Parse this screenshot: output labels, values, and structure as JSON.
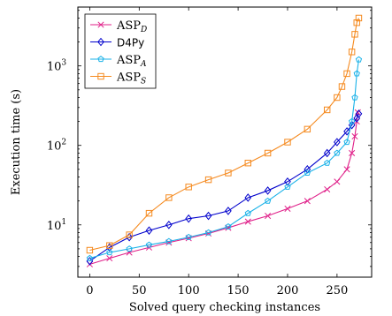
{
  "chart_data": {
    "type": "line",
    "title": "",
    "xlabel": "Solved query checking instances",
    "ylabel": "Execution time (s)",
    "xlim": [
      -12,
      285
    ],
    "ylim": [
      2.2,
      5500
    ],
    "yscale": "log",
    "xticks": [
      0,
      50,
      100,
      150,
      200,
      250
    ],
    "xtick_labels": [
      "0",
      "50",
      "100",
      "150",
      "200",
      "250"
    ],
    "yticks": [
      10,
      100,
      1000
    ],
    "ytick_labels": [
      "10",
      "10",
      "10"
    ],
    "ytick_exponents": [
      "1",
      "2",
      "3"
    ],
    "legend_position": "top-left",
    "series": [
      {
        "name": "ASP",
        "name_sub": "D",
        "color": "#e0218a",
        "marker": "x",
        "x": [
          0,
          20,
          40,
          60,
          80,
          100,
          120,
          140,
          160,
          180,
          200,
          220,
          240,
          250,
          260,
          265,
          268,
          270,
          271
        ],
        "y": [
          3.2,
          3.8,
          4.5,
          5.2,
          6.0,
          6.8,
          7.8,
          9.2,
          11,
          13,
          16,
          20,
          28,
          35,
          50,
          80,
          130,
          200,
          260
        ]
      },
      {
        "name": "D4Py",
        "color": "#0000cc",
        "marker": "diamond",
        "x": [
          0,
          20,
          40,
          60,
          80,
          100,
          120,
          140,
          160,
          180,
          200,
          220,
          240,
          250,
          260,
          265,
          270,
          272
        ],
        "y": [
          3.5,
          5.2,
          7.0,
          8.5,
          10,
          12,
          13,
          15,
          22,
          27,
          35,
          50,
          80,
          110,
          150,
          180,
          220,
          250
        ]
      },
      {
        "name": "ASP",
        "name_sub": "A",
        "color": "#1ab2e8",
        "marker": "pentagon",
        "x": [
          0,
          20,
          40,
          60,
          80,
          100,
          120,
          140,
          160,
          180,
          200,
          220,
          240,
          250,
          260,
          265,
          268,
          270,
          272
        ],
        "y": [
          3.8,
          4.5,
          5.0,
          5.6,
          6.2,
          7.0,
          8.0,
          9.5,
          14,
          20,
          30,
          45,
          60,
          80,
          110,
          200,
          400,
          800,
          1200
        ]
      },
      {
        "name": "ASP",
        "name_sub": "S",
        "color": "#f58a1f",
        "marker": "square",
        "x": [
          0,
          20,
          40,
          60,
          80,
          100,
          120,
          140,
          160,
          180,
          200,
          220,
          240,
          250,
          255,
          260,
          265,
          268,
          270,
          272
        ],
        "y": [
          4.8,
          5.5,
          7.5,
          14,
          22,
          30,
          37,
          45,
          60,
          80,
          110,
          160,
          280,
          400,
          550,
          800,
          1500,
          2500,
          3500,
          4000
        ]
      }
    ]
  }
}
